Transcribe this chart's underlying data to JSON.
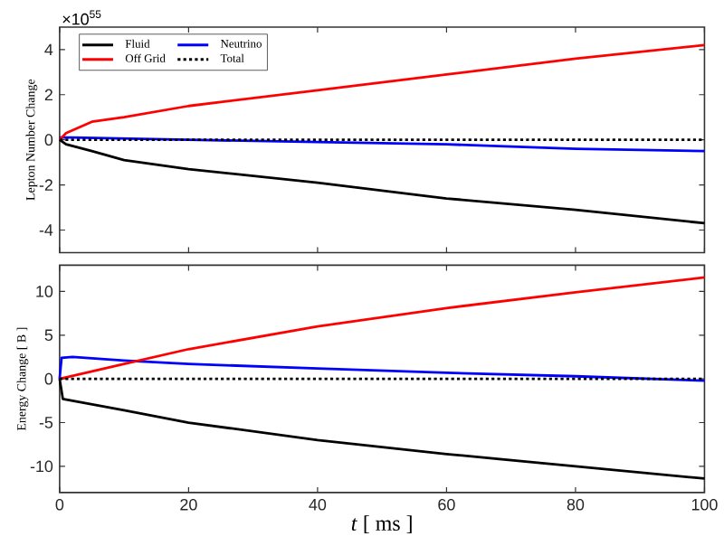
{
  "chart_data": [
    {
      "type": "line",
      "ylabel": "Lepton Number Change",
      "xlim": [
        0,
        100
      ],
      "ylim": [
        -5,
        5
      ],
      "xticks": [
        0,
        20,
        40,
        60,
        80,
        100
      ],
      "yticks": [
        -4,
        -2,
        0,
        2,
        4
      ],
      "tick_labels": "y",
      "legend": "top left",
      "grid": false,
      "marker": "none",
      "annotations": [
        "×10$^{55}$"
      ],
      "series": [
        {
          "name": "Fluid",
          "color": "#000000",
          "line_style": "solid",
          "x": [
            0,
            1,
            5,
            10,
            20,
            40,
            60,
            80,
            100
          ],
          "values": [
            0,
            -0.2,
            -0.5,
            -0.9,
            -1.3,
            -1.9,
            -2.6,
            -3.1,
            -3.7
          ]
        },
        {
          "name": "Neutrino",
          "color": "#0000ff",
          "line_style": "solid",
          "x": [
            0,
            2,
            20,
            40,
            60,
            80,
            100
          ],
          "values": [
            0.1,
            0.1,
            0,
            -0.1,
            -0.2,
            -0.4,
            -0.5
          ]
        },
        {
          "name": "Off Grid",
          "color": "#ff0000",
          "line_style": "solid",
          "x": [
            0,
            1,
            5,
            10,
            20,
            40,
            60,
            80,
            100
          ],
          "values": [
            0,
            0.3,
            0.8,
            1.0,
            1.5,
            2.2,
            2.9,
            3.6,
            4.2
          ]
        },
        {
          "name": "Total",
          "color": "#000000",
          "line_style": "dotted",
          "x": [
            0,
            100
          ],
          "values": [
            0,
            0
          ]
        }
      ]
    },
    {
      "type": "line",
      "xlabel": "*t* [ ms ]",
      "ylabel": "Energy Change [ B ]",
      "xlim": [
        0,
        100
      ],
      "ylim": [
        -13,
        13
      ],
      "xticks": [
        0,
        20,
        40,
        60,
        80,
        100
      ],
      "yticks": [
        -10,
        -5,
        0,
        5,
        10
      ],
      "legend": false,
      "grid": false,
      "marker": "none",
      "series": [
        {
          "color": "#000000",
          "line_style": "solid",
          "x": [
            0,
            0.5,
            10,
            20,
            40,
            60,
            80,
            100
          ],
          "values": [
            0,
            -2.3,
            -3.6,
            -5.0,
            -7.0,
            -8.6,
            -10.0,
            -11.4
          ]
        },
        {
          "color": "#0000ff",
          "line_style": "solid",
          "x": [
            0,
            0.3,
            2,
            10,
            20,
            40,
            60,
            80,
            100
          ],
          "values": [
            0,
            2.4,
            2.5,
            2.1,
            1.7,
            1.2,
            0.7,
            0.3,
            -0.2
          ]
        },
        {
          "color": "#ff0000",
          "line_style": "solid",
          "x": [
            0,
            10,
            20,
            40,
            60,
            80,
            100
          ],
          "values": [
            0,
            1.7,
            3.4,
            6.0,
            8.1,
            9.9,
            11.6
          ]
        },
        {
          "color": "#000000",
          "line_style": "dotted",
          "x": [
            0,
            100
          ],
          "values": [
            0,
            0
          ]
        }
      ]
    }
  ]
}
